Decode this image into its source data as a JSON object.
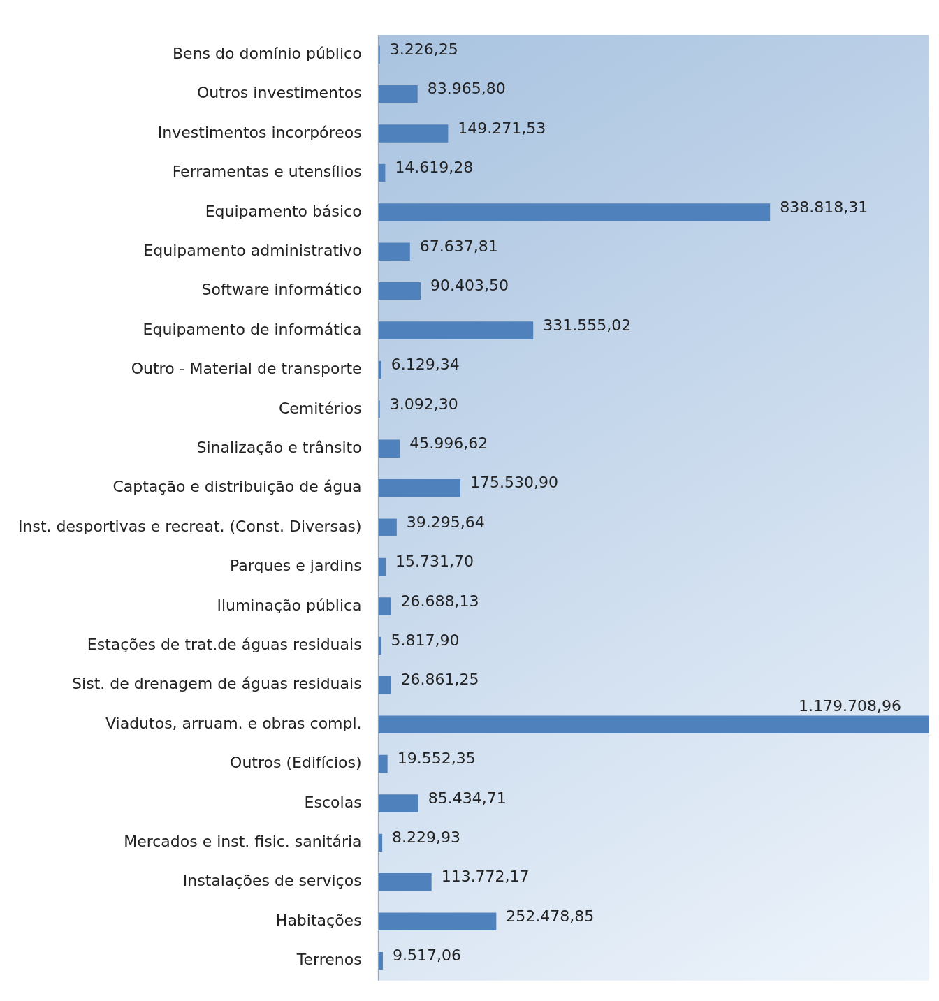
{
  "chart_data": {
    "type": "bar",
    "orientation": "horizontal",
    "color": "#4f81bd",
    "legend": false,
    "categories": [
      "Bens do domínio público",
      "Outros investimentos",
      "Investimentos incorpóreos",
      "Ferramentas e utensílios",
      "Equipamento básico",
      "Equipamento administrativo",
      "Software informático",
      "Equipamento de informática",
      "Outro - Material de transporte",
      "Cemitérios",
      "Sinalização e trânsito",
      "Captação e distribuição de água",
      "Inst. desportivas e recreat. (Const. Diversas)",
      "Parques e jardins",
      "Iluminação pública",
      "Estações de trat.de águas residuais",
      "Sist. de drenagem de águas residuais",
      "Viadutos, arruam. e obras compl.",
      "Outros (Edifícios)",
      "Escolas",
      "Mercados e inst. fisic. sanitária",
      "Instalações de serviços",
      "Habitações",
      "Terrenos"
    ],
    "values": [
      3226.25,
      83965.8,
      149271.53,
      14619.28,
      838818.31,
      67637.81,
      90403.5,
      331555.02,
      6129.34,
      3092.3,
      45996.62,
      175530.9,
      39295.64,
      15731.7,
      26688.13,
      5817.9,
      26861.25,
      1179708.96,
      19552.35,
      85434.71,
      8229.93,
      113772.17,
      252478.85,
      9517.06
    ],
    "value_labels": [
      "3.226,25",
      "83.965,80",
      "149.271,53",
      "14.619,28",
      "838.818,31",
      "67.637,81",
      "90.403,50",
      "331.555,02",
      "6.129,34",
      "3.092,30",
      "45.996,62",
      "175.530,90",
      "39.295,64",
      "15.731,70",
      "26.688,13",
      "5.817,90",
      "26.861,25",
      "1.179.708,96",
      "19.552,35",
      "85.434,71",
      "8.229,93",
      "113.772,17",
      "252.478,85",
      "9.517,06"
    ]
  }
}
